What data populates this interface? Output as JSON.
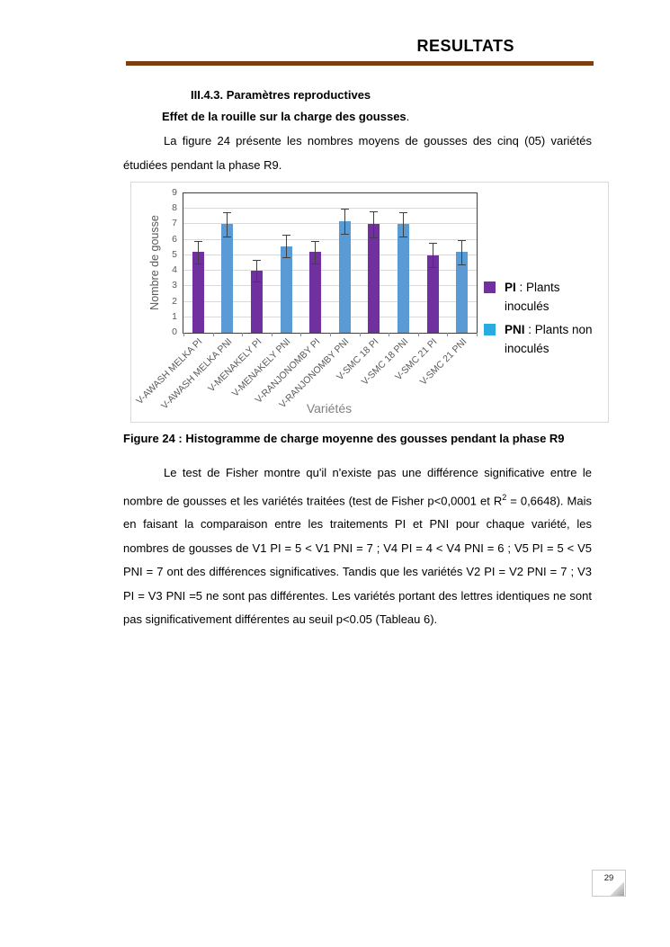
{
  "header": {
    "title": "RESULTATS"
  },
  "body": {
    "section_heading": "III.4.3. Paramètres reproductives",
    "subheading": "Effet de la rouille sur la charge des gousses",
    "subheading_tail": ".",
    "para1": "La figure 24 présente les nombres moyens de gousses des cinq (05) variétés étudiées pendant la phase R9.",
    "figure_caption": "Figure 24 : Histogramme de charge moyenne des gousses pendant la phase R9",
    "para2": {
      "before_sup": "Le test de Fisher montre qu'il n'existe pas une différence significative entre le nombre de gousses et les variétés traitées (test de Fisher p<0,0001 et R",
      "sup": "2",
      "after_sup": " = 0,6648). Mais en faisant la comparaison entre les traitements PI et PNI pour chaque variété, les nombres de gousses de V1 PI = 5 < V1 PNI = 7 ; V4 PI = 4 < V4 PNI = 6 ; V5 PI = 5 < V5 PNI = 7 ont des différences significatives. Tandis que les variétés V2 PI = V2 PNI = 7 ; V3 PI = V3 PNI =5 ne sont pas différentes. Les variétés portant des lettres identiques ne sont pas significativement différentes au seuil p<0.05 (Tableau 6)."
    }
  },
  "footer": {
    "page_number": "29"
  },
  "colors": {
    "header_rule": "#7E3E10",
    "pi_bar": "#7030A0",
    "pni_bar": "#5B9BD5",
    "pni_legend_swatch": "#29ABE2",
    "axis_text": "#595959",
    "gridline": "#D9D9D9"
  },
  "chart_data": {
    "type": "bar",
    "title": "",
    "xlabel": "Variétés",
    "ylabel": "Nombre de gousse",
    "ylim": [
      0,
      9
    ],
    "yticks": [
      0,
      1,
      2,
      3,
      4,
      5,
      6,
      7,
      8,
      9
    ],
    "grid": true,
    "legend_position": "right",
    "categories": [
      "V-AWASH MELKA PI",
      "V-AWASH MELKA PNI",
      "V-MENAKELY PI",
      "V-MENAKELY PNI",
      "V-RANJONOMBY PI",
      "V-RANJONOMBY PNI",
      "V-SMC 18 PI",
      "V-SMC 18 PNI",
      "V-SMC 21 PI",
      "V-SMC 21 PNI"
    ],
    "bars": [
      {
        "category": "V-AWASH MELKA PI",
        "series": "PI",
        "value": 5.2,
        "error": 0.75
      },
      {
        "category": "V-AWASH MELKA PNI",
        "series": "PNI",
        "value": 7.0,
        "error": 0.8
      },
      {
        "category": "V-MENAKELY PI",
        "series": "PI",
        "value": 4.0,
        "error": 0.7
      },
      {
        "category": "V-MENAKELY PNI",
        "series": "PNI",
        "value": 5.6,
        "error": 0.75
      },
      {
        "category": "V-RANJONOMBY PI",
        "series": "PI",
        "value": 5.2,
        "error": 0.75
      },
      {
        "category": "V-RANJONOMBY PNI",
        "series": "PNI",
        "value": 7.2,
        "error": 0.8
      },
      {
        "category": "V-SMC 18 PI",
        "series": "PI",
        "value": 7.0,
        "error": 0.85
      },
      {
        "category": "V-SMC 18 PNI",
        "series": "PNI",
        "value": 7.0,
        "error": 0.78
      },
      {
        "category": "V-SMC 21 PI",
        "series": "PI",
        "value": 5.0,
        "error": 0.78
      },
      {
        "category": "V-SMC 21 PNI",
        "series": "PNI",
        "value": 5.2,
        "error": 0.78
      }
    ],
    "series": [
      {
        "name": "PI",
        "color": "#7030A0",
        "swatch_color": "#7030A0",
        "legend_bold": "PI",
        "legend_rest": " : Plants inoculés"
      },
      {
        "name": "PNI",
        "color": "#5B9BD5",
        "swatch_color": "#29ABE2",
        "legend_bold": "PNI",
        "legend_rest": " : Plants non inoculés"
      }
    ]
  }
}
